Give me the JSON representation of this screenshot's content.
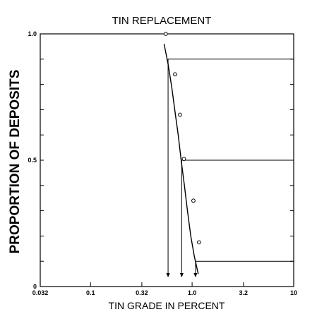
{
  "chart_data": {
    "type": "scatter",
    "title": "TIN REPLACEMENT",
    "xlabel": "TIN GRADE IN PERCENT",
    "ylabel": "PROPORTION OF DEPOSITS",
    "x_scale": "log",
    "xlim": [
      0.032,
      10
    ],
    "ylim": [
      0,
      1.0
    ],
    "x_ticks": [
      0.032,
      0.1,
      0.32,
      1.0,
      3.2,
      10
    ],
    "x_tick_labels": [
      "0.032",
      "0.1",
      "0.32",
      "1.0",
      "3.2",
      "10"
    ],
    "y_ticks": [
      0,
      0.1,
      0.2,
      0.3,
      0.4,
      0.5,
      0.6,
      0.7,
      0.8,
      0.9,
      1.0
    ],
    "y_tick_labels": {
      "0": "0",
      "0.5": "0.5",
      "1": "1.0"
    },
    "grid": false,
    "observed_points": [
      {
        "x": 0.55,
        "y": 1.0
      },
      {
        "x": 0.68,
        "y": 0.84
      },
      {
        "x": 0.76,
        "y": 0.68
      },
      {
        "x": 0.83,
        "y": 0.505
      },
      {
        "x": 1.03,
        "y": 0.34
      },
      {
        "x": 1.17,
        "y": 0.175
      }
    ],
    "fitted_curve": [
      {
        "x": 0.53,
        "y": 0.96
      },
      {
        "x": 0.58,
        "y": 0.88
      },
      {
        "x": 0.63,
        "y": 0.79
      },
      {
        "x": 0.68,
        "y": 0.69
      },
      {
        "x": 0.73,
        "y": 0.6
      },
      {
        "x": 0.78,
        "y": 0.5
      },
      {
        "x": 0.84,
        "y": 0.4
      },
      {
        "x": 0.9,
        "y": 0.3
      },
      {
        "x": 0.97,
        "y": 0.2
      },
      {
        "x": 1.05,
        "y": 0.12
      },
      {
        "x": 1.15,
        "y": 0.05
      }
    ],
    "percentile_lines": [
      {
        "y": 0.9,
        "x": 0.58
      },
      {
        "y": 0.5,
        "x": 0.79
      },
      {
        "y": 0.1,
        "x": 1.08
      }
    ]
  }
}
